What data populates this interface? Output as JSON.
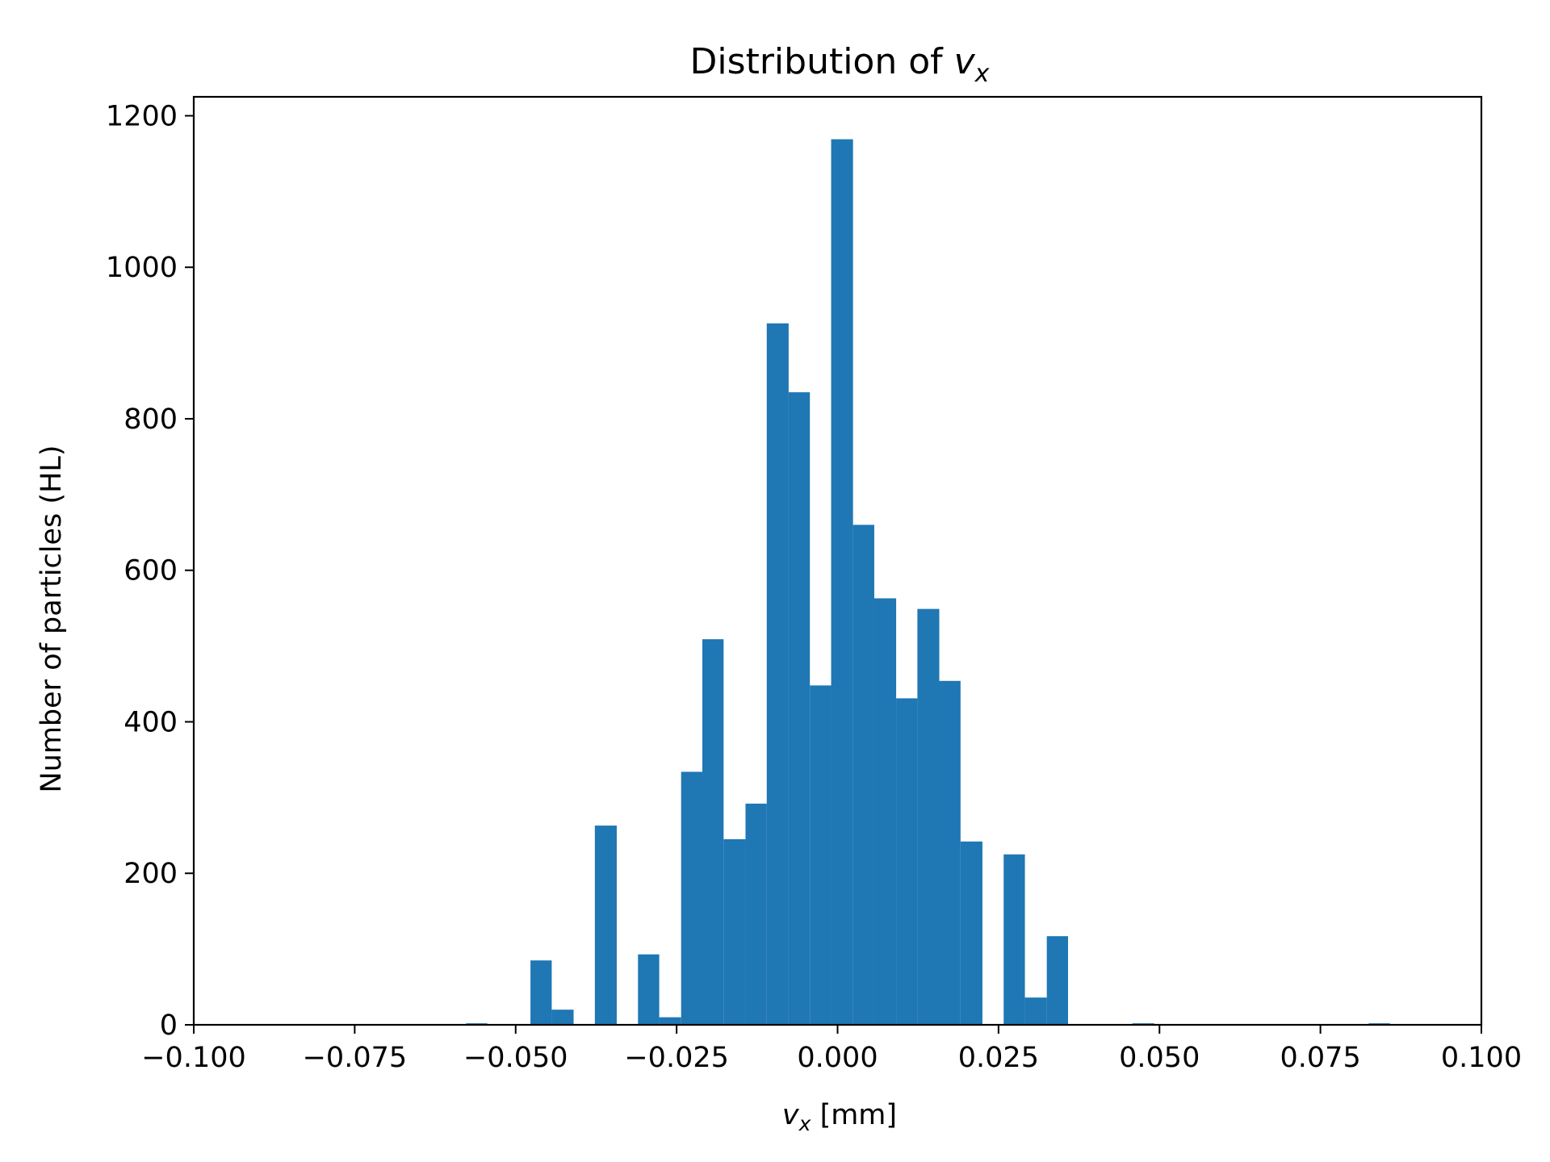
{
  "chart_data": {
    "type": "bar",
    "title": "Distribution of v_x",
    "title_parts": {
      "prefix": "Distribution of ",
      "var": "v",
      "sub": "x"
    },
    "xlabel": "v_x [mm]",
    "xlabel_parts": {
      "var": "v",
      "sub": "x",
      "suffix": " [mm]"
    },
    "ylabel": "Number of particles (HL)",
    "xlim": [
      -0.1,
      0.1
    ],
    "ylim": [
      0,
      1225
    ],
    "xticks": [
      -0.1,
      -0.075,
      -0.05,
      -0.025,
      0.0,
      0.025,
      0.05,
      0.075,
      0.1
    ],
    "xtick_labels": [
      "−0.100",
      "−0.075",
      "−0.050",
      "−0.025",
      "0.000",
      "0.025",
      "0.050",
      "0.075",
      "0.100"
    ],
    "yticks": [
      0,
      200,
      400,
      600,
      800,
      1000,
      1200
    ],
    "ytick_labels": [
      "0",
      "200",
      "400",
      "600",
      "800",
      "1000",
      "1200"
    ],
    "grid": false,
    "bar_color": "#1f77b4",
    "bins": [
      {
        "x0": -0.0577,
        "x1": -0.0544,
        "count": 2
      },
      {
        "x0": -0.0477,
        "x1": -0.0444,
        "count": 85
      },
      {
        "x0": -0.0444,
        "x1": -0.041,
        "count": 20
      },
      {
        "x0": -0.0377,
        "x1": -0.0343,
        "count": 263
      },
      {
        "x0": -0.031,
        "x1": -0.0277,
        "count": 93
      },
      {
        "x0": -0.0277,
        "x1": -0.0243,
        "count": 10
      },
      {
        "x0": -0.0243,
        "x1": -0.021,
        "count": 334
      },
      {
        "x0": -0.021,
        "x1": -0.0177,
        "count": 509
      },
      {
        "x0": -0.0177,
        "x1": -0.0143,
        "count": 245
      },
      {
        "x0": -0.0143,
        "x1": -0.011,
        "count": 292
      },
      {
        "x0": -0.011,
        "x1": -0.0076,
        "count": 926
      },
      {
        "x0": -0.0076,
        "x1": -0.0043,
        "count": 835
      },
      {
        "x0": -0.0043,
        "x1": -0.001,
        "count": 448
      },
      {
        "x0": -0.001,
        "x1": 0.0024,
        "count": 1169
      },
      {
        "x0": 0.0024,
        "x1": 0.0057,
        "count": 660
      },
      {
        "x0": 0.0057,
        "x1": 0.0091,
        "count": 563
      },
      {
        "x0": 0.0091,
        "x1": 0.0124,
        "count": 431
      },
      {
        "x0": 0.0124,
        "x1": 0.0158,
        "count": 549
      },
      {
        "x0": 0.0158,
        "x1": 0.0191,
        "count": 454
      },
      {
        "x0": 0.0191,
        "x1": 0.0225,
        "count": 242
      },
      {
        "x0": 0.0258,
        "x1": 0.0291,
        "count": 225
      },
      {
        "x0": 0.0291,
        "x1": 0.0325,
        "count": 36
      },
      {
        "x0": 0.0325,
        "x1": 0.0358,
        "count": 117
      },
      {
        "x0": 0.0458,
        "x1": 0.0492,
        "count": 2
      },
      {
        "x0": 0.0692,
        "x1": 0.0725,
        "count": 1
      },
      {
        "x0": 0.0758,
        "x1": 0.0792,
        "count": 1
      },
      {
        "x0": 0.0825,
        "x1": 0.0858,
        "count": 2
      }
    ]
  }
}
